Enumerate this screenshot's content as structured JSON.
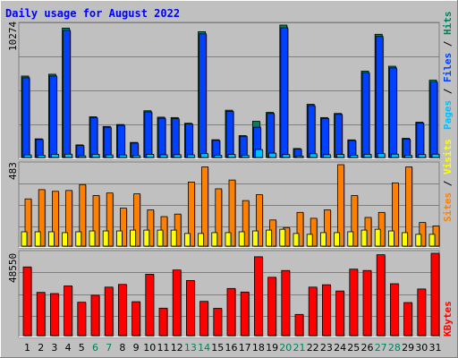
{
  "chart_data": [
    {
      "type": "bar",
      "panel": "hits-files-pages",
      "title": "Daily usage for August 2022",
      "ymax_label": "10274",
      "ymax": 10274,
      "legend_labels": {
        "pages": "Pages",
        "files": "Files",
        "hits": "Hits"
      },
      "colors": {
        "hits": "#00805c",
        "files": "#0040ff",
        "pages": "#00c0ff"
      },
      "categories": [
        "1",
        "2",
        "3",
        "4",
        "5",
        "6",
        "7",
        "8",
        "9",
        "10",
        "11",
        "12",
        "13",
        "14",
        "15",
        "16",
        "17",
        "18",
        "19",
        "20",
        "21",
        "22",
        "23",
        "24",
        "25",
        "26",
        "27",
        "28",
        "29",
        "30",
        "31"
      ],
      "series": [
        {
          "name": "Hits",
          "values": [
            6320,
            1450,
            6460,
            10040,
            980,
            3160,
            2410,
            2560,
            1170,
            3630,
            3130,
            3100,
            2660,
            9760,
            1380,
            3670,
            1700,
            2810,
            3500,
            10274,
            700,
            4130,
            3100,
            3420,
            1370,
            6700,
            9560,
            7080,
            1490,
            2740,
            6000
          ]
        },
        {
          "name": "Files",
          "values": [
            6190,
            1400,
            6320,
            9860,
            930,
            3080,
            2350,
            2500,
            1120,
            3540,
            3050,
            3010,
            2600,
            9590,
            1330,
            3580,
            1650,
            2350,
            3420,
            10060,
            650,
            4030,
            3030,
            3350,
            1320,
            6580,
            9390,
            6950,
            1430,
            2670,
            5860
          ]
        },
        {
          "name": "Pages",
          "values": [
            200,
            180,
            250,
            260,
            130,
            250,
            200,
            200,
            150,
            250,
            210,
            220,
            210,
            300,
            170,
            240,
            160,
            620,
            340,
            230,
            120,
            290,
            220,
            240,
            180,
            250,
            300,
            260,
            160,
            230,
            260
          ]
        }
      ]
    },
    {
      "type": "bar",
      "panel": "visits-sites",
      "ymax_label": "483",
      "ymax": 483,
      "legend_labels": {
        "sites": "Sites",
        "visits": "Visits"
      },
      "colors": {
        "visits": "#ff8000",
        "sites": "#ffff00"
      },
      "categories": [
        "1",
        "2",
        "3",
        "4",
        "5",
        "6",
        "7",
        "8",
        "9",
        "10",
        "11",
        "12",
        "13",
        "14",
        "15",
        "16",
        "17",
        "18",
        "19",
        "20",
        "21",
        "22",
        "23",
        "24",
        "25",
        "26",
        "27",
        "28",
        "29",
        "30",
        "31"
      ],
      "series": [
        {
          "name": "Visits",
          "values": [
            280,
            335,
            325,
            330,
            365,
            300,
            315,
            225,
            310,
            215,
            175,
            190,
            380,
            470,
            340,
            392,
            270,
            305,
            155,
            110,
            200,
            165,
            215,
            483,
            300,
            170,
            200,
            375,
            470,
            140,
            120
          ]
        },
        {
          "name": "Sites",
          "values": [
            85,
            85,
            85,
            80,
            85,
            90,
            90,
            90,
            95,
            95,
            95,
            95,
            75,
            75,
            80,
            80,
            85,
            90,
            95,
            100,
            75,
            70,
            80,
            80,
            85,
            95,
            100,
            90,
            80,
            70,
            70
          ]
        }
      ]
    },
    {
      "type": "bar",
      "panel": "kbytes",
      "ymax_label": "48550",
      "ymax": 48550,
      "legend_labels": {
        "kbytes": "KBytes"
      },
      "colors": {
        "kbytes": "#ff0000"
      },
      "categories": [
        "1",
        "2",
        "3",
        "4",
        "5",
        "6",
        "7",
        "8",
        "9",
        "10",
        "11",
        "12",
        "13",
        "14",
        "15",
        "16",
        "17",
        "18",
        "19",
        "20",
        "21",
        "22",
        "23",
        "24",
        "25",
        "26",
        "27",
        "28",
        "29",
        "30",
        "31"
      ],
      "series": [
        {
          "name": "KBytes",
          "values": [
            40500,
            25500,
            24800,
            29300,
            19700,
            23800,
            28600,
            30200,
            20000,
            36200,
            16200,
            38700,
            32500,
            20200,
            16100,
            27800,
            25700,
            46500,
            34400,
            38400,
            12500,
            28600,
            30000,
            26300,
            39200,
            38400,
            47700,
            30600,
            19500,
            27500,
            48550
          ]
        }
      ]
    }
  ],
  "x_labels": [
    {
      "text": "1",
      "color": "#000000"
    },
    {
      "text": "2",
      "color": "#000000"
    },
    {
      "text": "3",
      "color": "#000000"
    },
    {
      "text": "4",
      "color": "#000000"
    },
    {
      "text": "5",
      "color": "#000000"
    },
    {
      "text": "6",
      "color": "#00805c"
    },
    {
      "text": "7",
      "color": "#00805c"
    },
    {
      "text": "8",
      "color": "#000000"
    },
    {
      "text": "9",
      "color": "#000000"
    },
    {
      "text": "10",
      "color": "#000000"
    },
    {
      "text": "11",
      "color": "#000000"
    },
    {
      "text": "12",
      "color": "#000000"
    },
    {
      "text": "13",
      "color": "#00805c"
    },
    {
      "text": "14",
      "color": "#00805c"
    },
    {
      "text": "15",
      "color": "#000000"
    },
    {
      "text": "16",
      "color": "#000000"
    },
    {
      "text": "17",
      "color": "#000000"
    },
    {
      "text": "18",
      "color": "#000000"
    },
    {
      "text": "19",
      "color": "#000000"
    },
    {
      "text": "20",
      "color": "#00805c"
    },
    {
      "text": "21",
      "color": "#00805c"
    },
    {
      "text": "22",
      "color": "#000000"
    },
    {
      "text": "23",
      "color": "#000000"
    },
    {
      "text": "24",
      "color": "#000000"
    },
    {
      "text": "25",
      "color": "#000000"
    },
    {
      "text": "26",
      "color": "#000000"
    },
    {
      "text": "27",
      "color": "#00805c"
    },
    {
      "text": "28",
      "color": "#00805c"
    },
    {
      "text": "29",
      "color": "#000000"
    },
    {
      "text": "30",
      "color": "#000000"
    },
    {
      "text": "31",
      "color": "#000000"
    }
  ],
  "legend_separator": " / "
}
